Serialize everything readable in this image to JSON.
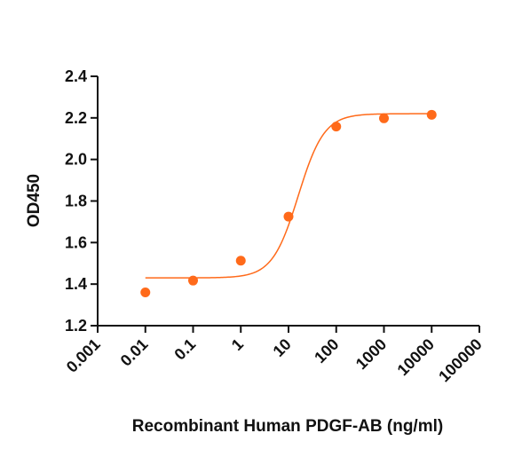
{
  "chart_data": {
    "type": "scatter",
    "xlabel": "Recombinant Human PDGF-AB (ng/ml)",
    "ylabel": "OD450",
    "xscale": "log",
    "xlim": [
      0.001,
      100000
    ],
    "ylim": [
      1.2,
      2.4
    ],
    "x_ticks": [
      "0.001",
      "0.01",
      "0.1",
      "1",
      "10",
      "100",
      "1000",
      "10000",
      "100000"
    ],
    "y_ticks": [
      "1.2",
      "1.4",
      "1.6",
      "1.8",
      "2.0",
      "2.2",
      "2.4"
    ],
    "grid": false,
    "legend": "none",
    "series": [
      {
        "points": [
          {
            "x": 0.01,
            "y": 1.36
          },
          {
            "x": 0.1,
            "y": 1.417
          },
          {
            "x": 1,
            "y": 1.513
          },
          {
            "x": 10,
            "y": 1.725
          },
          {
            "x": 100,
            "y": 2.158
          },
          {
            "x": 1000,
            "y": 2.198
          },
          {
            "x": 10000,
            "y": 2.215
          }
        ],
        "fit": {
          "model": "4PL",
          "bottom": 1.43,
          "top": 2.22,
          "ec50": 16.0,
          "hill": 1.6
        }
      }
    ],
    "colors": {
      "series": "#FF6A1A",
      "axis": "#111111"
    }
  }
}
